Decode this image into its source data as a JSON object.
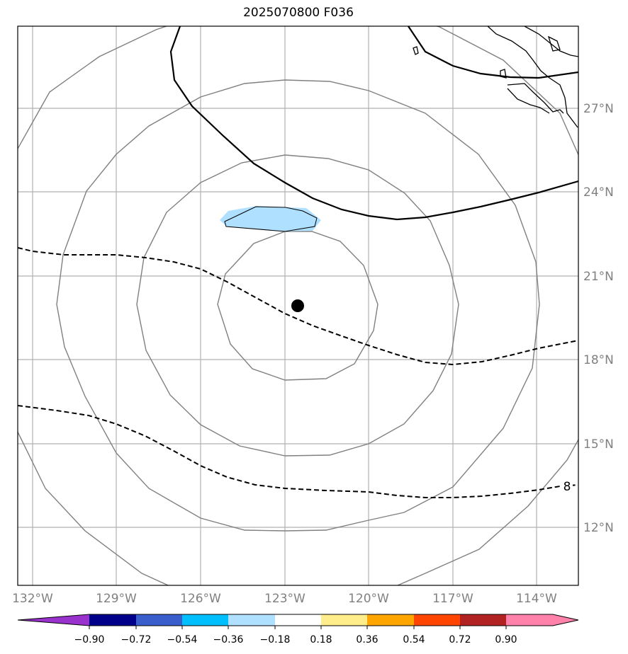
{
  "title": "2025070800 F036",
  "map": {
    "lon_range": [
      -133,
      -113
    ],
    "lat_range": [
      9,
      30
    ],
    "lon_ticks": [
      "132°W",
      "129°W",
      "126°W",
      "123°W",
      "120°W",
      "117°W",
      "114°W"
    ],
    "lat_ticks": [
      "12°N",
      "15°N",
      "18°N",
      "21°N",
      "24°N",
      "27°N"
    ],
    "center_marker": {
      "lon": -122.6,
      "lat": 19.9
    },
    "contour_label": "8",
    "contour_color": "#808080",
    "negative_shading_color": "#b0e0ff"
  },
  "colorbar": {
    "tick_labels": [
      "−0.90",
      "−0.72",
      "−0.54",
      "−0.36",
      "−0.18",
      "0.18",
      "0.36",
      "0.54",
      "0.72",
      "0.90"
    ],
    "colors": [
      "#9932cc",
      "#00008b",
      "#3a5fcd",
      "#00bfff",
      "#b0e0ff",
      "#ffffff",
      "#ffec8b",
      "#ffa500",
      "#ff4500",
      "#b22222",
      "#ff82ab",
      "#ff82ab"
    ]
  }
}
